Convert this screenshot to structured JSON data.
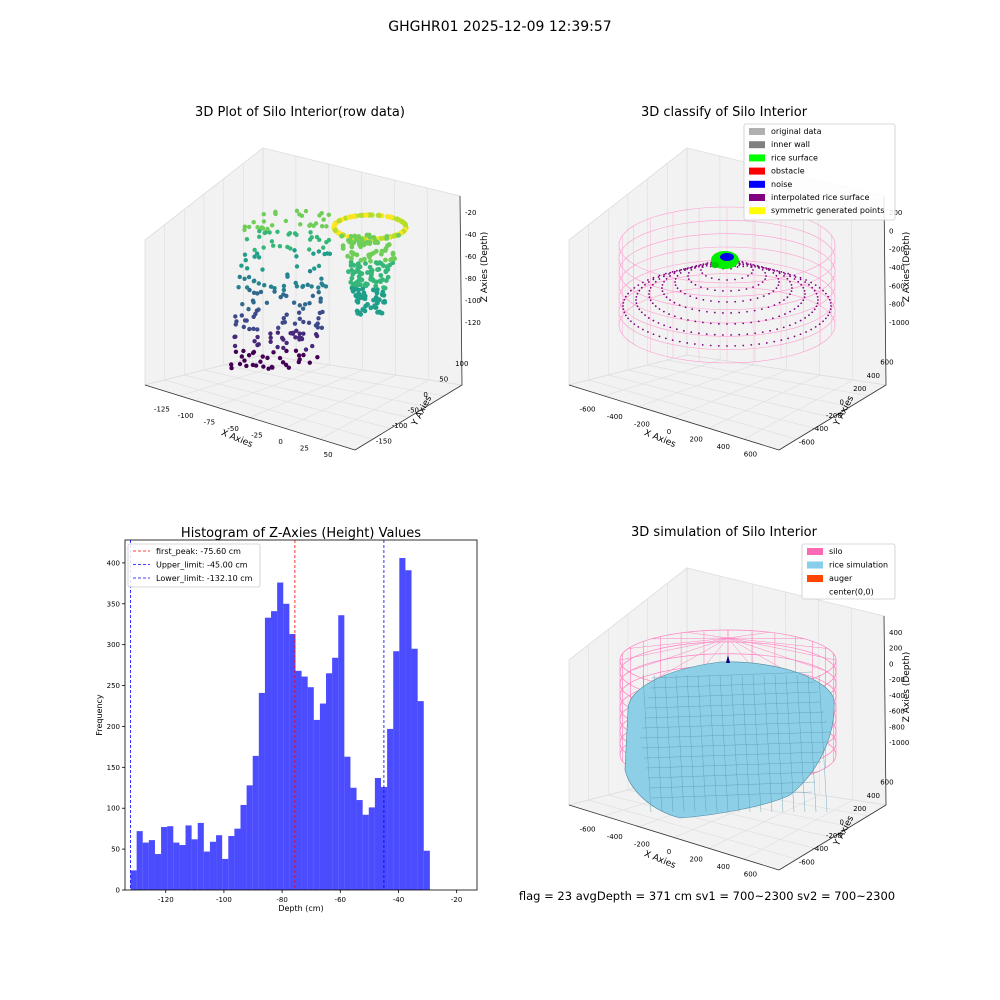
{
  "suptitle": "GHGHR01 2025-12-09 12:39:57",
  "status_text": "flag = 23   avgDepth = 371 cm  sv1 = 700~2300  sv2 = 700~2300",
  "panel_raw": {
    "title": "3D Plot of Silo Interior(row data)",
    "xlabel": "X Axies",
    "ylabel": "Y Axies",
    "zlabel": "Z Axies (Depth)",
    "x_ticks": [
      "-125",
      "-100",
      "-75",
      "-50",
      "-25",
      "0",
      "25",
      "50"
    ],
    "y_ticks": [
      "100",
      "50",
      "0",
      "-50",
      "-100",
      "-150"
    ],
    "z_ticks": [
      "-20",
      "-40",
      "-60",
      "-80",
      "-100",
      "-120"
    ]
  },
  "panel_classify": {
    "title": "3D classify of Silo Interior",
    "xlabel": "X Axies",
    "ylabel": "Y Axies",
    "zlabel": "Z Axies (Depth)",
    "x_ticks": [
      "-600",
      "-400",
      "-200",
      "0",
      "200",
      "400",
      "600"
    ],
    "y_ticks": [
      "600",
      "400",
      "200",
      "0",
      "-200",
      "-400",
      "-600"
    ],
    "z_ticks": [
      "200",
      "0",
      "-200",
      "-400",
      "-600",
      "-800",
      "-1000"
    ],
    "legend": [
      {
        "label": "original data",
        "color": "#b0b0b0"
      },
      {
        "label": "inner wall",
        "color": "#808080"
      },
      {
        "label": "rice surface",
        "color": "#00ff00"
      },
      {
        "label": "obstacle",
        "color": "#ff0000"
      },
      {
        "label": "noise",
        "color": "#0000ff"
      },
      {
        "label": "interpolated rice surface",
        "color": "#800080"
      },
      {
        "label": "symmetric generated points",
        "color": "#ffff00"
      }
    ]
  },
  "panel_sim": {
    "title": "3D simulation of Silo Interior",
    "xlabel": "X Axies",
    "ylabel": "Y Axies",
    "zlabel": "Z Axies (Depth)",
    "x_ticks": [
      "-600",
      "-400",
      "-200",
      "0",
      "200",
      "400",
      "600"
    ],
    "y_ticks": [
      "600",
      "400",
      "200",
      "0",
      "-200",
      "-400",
      "-600"
    ],
    "z_ticks": [
      "400",
      "200",
      "0",
      "-200",
      "-400",
      "-600",
      "-800",
      "-1000"
    ],
    "legend": [
      {
        "label": "silo",
        "color": "#ff69b4"
      },
      {
        "label": "rice simulation",
        "color": "#87ceeb"
      },
      {
        "label": "auger",
        "color": "#ff4500"
      },
      {
        "label": "center(0,0)",
        "color": "#ffffff"
      }
    ]
  },
  "chart_data": {
    "type": "bar",
    "title": "Histogram of Z-Axies (Height) Values",
    "xlabel": "Depth (cm)",
    "ylabel": "Frequency",
    "xlim": [
      -134,
      -13
    ],
    "ylim": [
      0,
      428
    ],
    "x_ticks": [
      -120,
      -100,
      -80,
      -60,
      -40,
      -20
    ],
    "y_ticks": [
      0,
      50,
      100,
      150,
      200,
      250,
      300,
      350,
      400
    ],
    "bar_color": "#0000ff",
    "bin_start": -132.1,
    "bin_width": 2.1,
    "values": [
      24,
      72,
      58,
      61,
      44,
      77,
      78,
      58,
      55,
      79,
      62,
      82,
      47,
      59,
      67,
      38,
      66,
      75,
      104,
      128,
      164,
      241,
      333,
      341,
      376,
      350,
      313,
      268,
      261,
      248,
      208,
      228,
      265,
      284,
      336,
      163,
      125,
      110,
      92,
      101,
      137,
      126,
      197,
      292,
      406,
      391,
      295,
      231,
      48
    ],
    "vlines": [
      {
        "label": "first_peak: -75.60 cm",
        "x": -75.6,
        "color": "#ff0000"
      },
      {
        "label": "Upper_limit: -45.00 cm",
        "x": -45.0,
        "color": "#0000ff"
      },
      {
        "label": "Lower_limit: -132.10 cm",
        "x": -132.1,
        "color": "#0000ff"
      }
    ]
  }
}
